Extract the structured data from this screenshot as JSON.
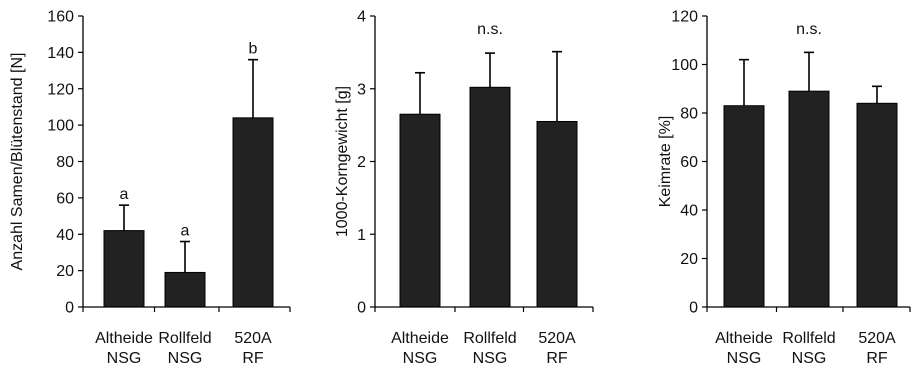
{
  "chart_data": [
    {
      "type": "bar",
      "title": "",
      "ylabel": "Anzahl Samen/Blütenstand [N]",
      "xlabel": "",
      "categories": [
        [
          "Altheide",
          "NSG"
        ],
        [
          "Rollfeld",
          "NSG"
        ],
        [
          "520A",
          "RF"
        ]
      ],
      "values": [
        42,
        19,
        104
      ],
      "errors": [
        14,
        17,
        32
      ],
      "annotations": [
        "a",
        "a",
        "b"
      ],
      "ylim": [
        0,
        160
      ],
      "yticks": [
        0,
        20,
        40,
        60,
        80,
        100,
        120,
        140,
        160
      ],
      "bar_color": "#222222",
      "grid": false,
      "legend": "none"
    },
    {
      "type": "bar",
      "title": "",
      "ylabel": "1000-Korngewicht [g]",
      "xlabel": "",
      "categories": [
        [
          "Altheide",
          "NSG"
        ],
        [
          "Rollfeld",
          "NSG"
        ],
        [
          "520A",
          "RF"
        ]
      ],
      "values": [
        2.65,
        3.02,
        2.55
      ],
      "errors": [
        0.57,
        0.47,
        0.96
      ],
      "center_note": "n.s.",
      "ylim": [
        0,
        4
      ],
      "yticks": [
        0,
        1,
        2,
        3,
        4
      ],
      "bar_color": "#222222",
      "grid": false,
      "legend": "none"
    },
    {
      "type": "bar",
      "title": "",
      "ylabel": "Keimrate [%]",
      "xlabel": "",
      "categories": [
        [
          "Altheide",
          "NSG"
        ],
        [
          "Rollfeld",
          "NSG"
        ],
        [
          "520A",
          "RF"
        ]
      ],
      "values": [
        83,
        89,
        84
      ],
      "errors": [
        19,
        16,
        7
      ],
      "center_note": "n.s.",
      "ylim": [
        0,
        120
      ],
      "yticks": [
        0,
        20,
        40,
        60,
        80,
        100,
        120
      ],
      "bar_color": "#222222",
      "grid": false,
      "legend": "none"
    }
  ]
}
